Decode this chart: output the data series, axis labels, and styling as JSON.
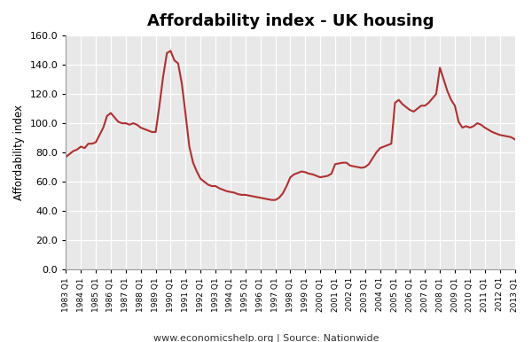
{
  "title": "Affordability index - UK housing",
  "ylabel": "Affordability index",
  "footer": "www.economicshelp.org | Source: Nationwide",
  "line_color": "#b03030",
  "background_color": "#ffffff",
  "plot_bg_color": "#e8e8e8",
  "grid_color": "#ffffff",
  "ylim": [
    0,
    160
  ],
  "yticks": [
    0.0,
    20.0,
    40.0,
    60.0,
    80.0,
    100.0,
    120.0,
    140.0,
    160.0
  ],
  "quarterly_values": [
    77.0,
    79.0,
    81.0,
    82.0,
    84.0,
    83.0,
    86.0,
    86.0,
    87.0,
    92.0,
    97.0,
    105.0,
    107.0,
    104.0,
    101.0,
    100.0,
    100.0,
    99.0,
    100.0,
    99.0,
    97.0,
    96.0,
    95.0,
    94.0,
    94.0,
    112.0,
    132.0,
    148.0,
    149.5,
    143.0,
    141.0,
    127.0,
    106.0,
    84.0,
    73.0,
    67.0,
    62.0,
    60.0,
    58.0,
    57.0,
    57.0,
    55.5,
    54.5,
    53.5,
    53.0,
    52.5,
    51.5,
    51.0,
    51.0,
    50.5,
    50.0,
    49.5,
    49.0,
    48.5,
    48.0,
    47.5,
    47.5,
    49.0,
    52.0,
    57.0,
    63.0,
    65.0,
    66.0,
    67.0,
    66.5,
    65.5,
    65.0,
    64.0,
    63.0,
    63.5,
    64.0,
    65.5,
    72.0,
    72.5,
    73.0,
    73.0,
    71.0,
    70.5,
    70.0,
    69.5,
    70.0,
    72.0,
    76.0,
    80.0,
    83.0,
    84.0,
    85.0,
    86.0,
    114.0,
    116.0,
    113.0,
    111.0,
    109.0,
    108.0,
    110.0,
    112.0,
    112.0,
    114.0,
    117.0,
    120.0,
    138.0,
    130.0,
    122.0,
    116.0,
    112.0,
    101.0,
    97.0,
    98.0,
    97.0,
    98.0,
    100.0,
    99.0,
    97.0,
    95.5,
    94.0,
    93.0,
    92.0,
    91.5,
    91.0,
    90.5,
    89.0
  ]
}
